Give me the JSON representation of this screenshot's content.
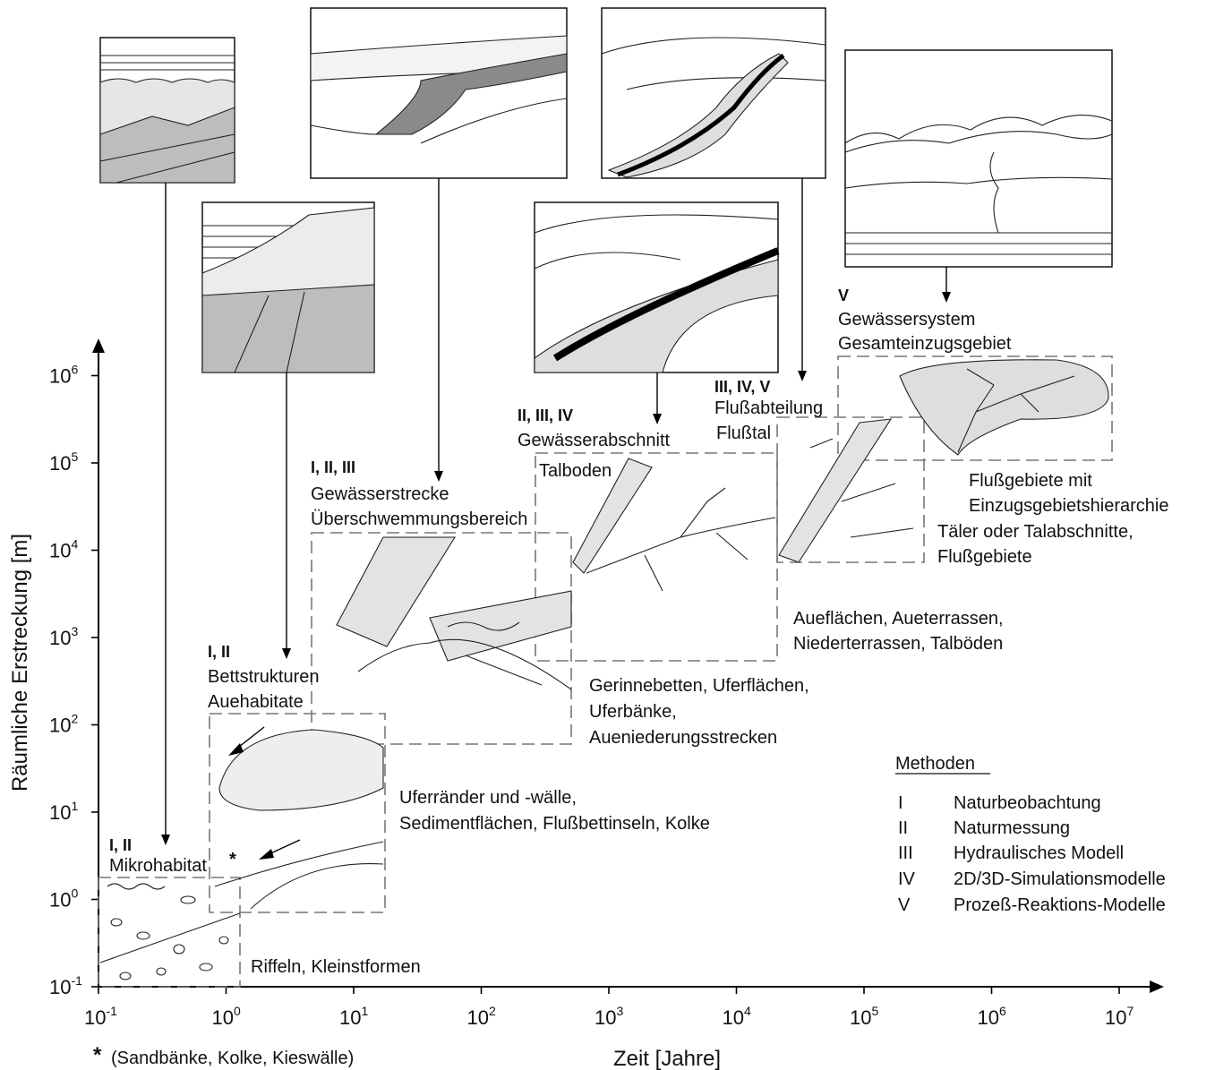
{
  "axes": {
    "y_label": "Räumliche Erstreckung [m]",
    "x_label": "Zeit  [Jahre]",
    "ticks": [
      {
        "base": "10",
        "exp": "-1"
      },
      {
        "base": "10",
        "exp": "0"
      },
      {
        "base": "10",
        "exp": "1"
      },
      {
        "base": "10",
        "exp": "2"
      },
      {
        "base": "10",
        "exp": "3"
      },
      {
        "base": "10",
        "exp": "4"
      },
      {
        "base": "10",
        "exp": "5"
      },
      {
        "base": "10",
        "exp": "6"
      },
      {
        "base": "10",
        "exp": "7"
      }
    ],
    "y_ticks": [
      {
        "base": "10",
        "exp": "-1"
      },
      {
        "base": "10",
        "exp": "0"
      },
      {
        "base": "10",
        "exp": "1"
      },
      {
        "base": "10",
        "exp": "2"
      },
      {
        "base": "10",
        "exp": "3"
      },
      {
        "base": "10",
        "exp": "4"
      },
      {
        "base": "10",
        "exp": "5"
      },
      {
        "base": "10",
        "exp": "6"
      }
    ]
  },
  "footnote": {
    "star": "*",
    "text": "(Sandbänke, Kolke, Kieswälle)"
  },
  "levels": {
    "mikro": {
      "methods": "I, II",
      "name": "Mikrohabitat",
      "star": "*",
      "desc": "Riffeln, Kleinstformen"
    },
    "bett": {
      "methods": "I, II",
      "line1": "Bettstrukturen",
      "line2": "Auehabitate",
      "desc1": "Uferränder und -wälle,",
      "desc2": "Sedimentflächen, Flußbettinseln, Kolke"
    },
    "strecke": {
      "methods": "I, II, III",
      "line1": "Gewässerstrecke",
      "line2": "Überschwemmungsbereich",
      "desc1": "Gerinnebetten, Uferflächen,",
      "desc2": "Uferbänke,",
      "desc3": "Aueniederungsstrecken"
    },
    "abschnitt": {
      "methods": "II, III, IV",
      "line1": "Gewässerabschnitt",
      "line2": "Talboden",
      "desc1": "Aueflächen, Aueterrassen,",
      "desc2": "Niederterrassen, Talböden"
    },
    "abteilung": {
      "methods": "III, IV, V",
      "line1": "Flußabteilung",
      "line2": "Flußtal",
      "desc1": "Täler oder Talabschnitte,",
      "desc2": "Flußgebiete"
    },
    "system": {
      "methods": "V",
      "line1": "Gewässersystem",
      "line2": "Gesamteinzugsgebiet",
      "desc1": "Flußgebiete mit",
      "desc2": "Einzugsgebietshierarchie"
    }
  },
  "legend": {
    "title": "Methoden",
    "items": [
      {
        "code": "I",
        "label": "Naturbeobachtung"
      },
      {
        "code": "II",
        "label": "Naturmessung"
      },
      {
        "code": "III",
        "label": "Hydraulisches Modell"
      },
      {
        "code": "IV",
        "label": "2D/3D-Simulationsmodelle"
      },
      {
        "code": "V",
        "label": "Prozeß-Reaktions-Modelle"
      }
    ]
  }
}
